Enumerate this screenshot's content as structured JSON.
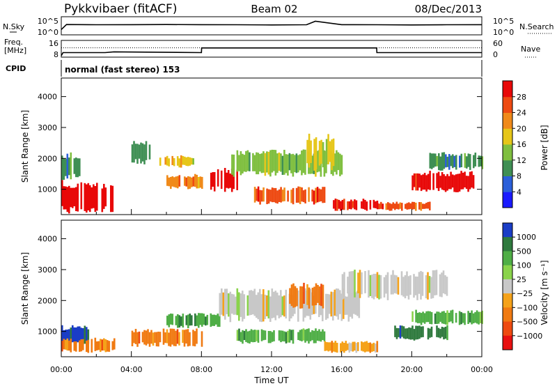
{
  "header": {
    "station": "Pykkvibaer (fitACF)",
    "beam": "Beam 02",
    "date": "08/Dec/2013"
  },
  "chart_data": [
    {
      "type": "line",
      "panel": "noise",
      "left_label": "N.Sky",
      "left_ticks": [
        "10^5",
        "10^0"
      ],
      "right_label": "N.Search",
      "right_ticks": [
        "10^5",
        "10^0"
      ],
      "series": [
        {
          "name": "N.Sky",
          "style": "solid",
          "x": [
            0,
            0.3,
            2,
            4,
            6,
            8,
            10,
            12,
            14,
            14.5,
            16,
            18,
            20,
            22,
            24
          ],
          "y": [
            10,
            1000,
            800,
            900,
            1000,
            900,
            800,
            700,
            800,
            20000,
            900,
            800,
            700,
            800,
            900
          ]
        }
      ]
    },
    {
      "type": "line",
      "panel": "frequency",
      "left_label": "Freq.",
      "left_unit": "[MHz]",
      "left_ticks": [
        "16",
        "8"
      ],
      "right_label": "Nave",
      "right_ticks": [
        "60",
        "0"
      ],
      "series": [
        {
          "name": "Freq",
          "style": "solid",
          "x": [
            0,
            0.1,
            2.5,
            3,
            8,
            8.01,
            18,
            18.01,
            24
          ],
          "y": [
            8,
            10,
            10,
            10.5,
            10,
            13,
            13,
            10,
            10
          ]
        },
        {
          "name": "Nave",
          "style": "dotted",
          "x": [
            0,
            24
          ],
          "y": [
            38,
            38
          ]
        }
      ]
    },
    {
      "type": "text",
      "panel": "cpid",
      "label": "CPID",
      "value": "normal (fast stereo) 153"
    },
    {
      "type": "heatmap",
      "panel": "power",
      "xlabel": "",
      "ylabel": "Slant Range [km]",
      "xlim": [
        0,
        24
      ],
      "ylim": [
        180,
        4600
      ],
      "yticks": [
        1000,
        2000,
        3000,
        4000
      ],
      "colorbar": {
        "label": "Power [dB]",
        "ticks": [
          4,
          8,
          12,
          16,
          20,
          24,
          28
        ],
        "range": [
          0,
          32
        ],
        "colors": [
          "#1a1aff",
          "#2b5fd9",
          "#3f8f54",
          "#7fbf3f",
          "#e6c619",
          "#f08a1a",
          "#ee4a12",
          "#e80808"
        ]
      },
      "bands": [
        {
          "x": [
            0,
            3
          ],
          "y": [
            200,
            1300
          ],
          "level": 28
        },
        {
          "x": [
            0,
            1
          ],
          "y": [
            1300,
            2200
          ],
          "level": 10
        },
        {
          "x": [
            4,
            5
          ],
          "y": [
            1800,
            2600
          ],
          "level": 8
        },
        {
          "x": [
            5.5,
            7.5
          ],
          "y": [
            1700,
            2100
          ],
          "level": 16
        },
        {
          "x": [
            6,
            8
          ],
          "y": [
            1000,
            1500
          ],
          "level": 20
        },
        {
          "x": [
            8.5,
            10
          ],
          "y": [
            900,
            1700
          ],
          "level": 28
        },
        {
          "x": [
            9.5,
            16
          ],
          "y": [
            1400,
            2300
          ],
          "level": 12
        },
        {
          "x": [
            11,
            15
          ],
          "y": [
            500,
            1100
          ],
          "level": 24
        },
        {
          "x": [
            14,
            15.5
          ],
          "y": [
            1600,
            2800
          ],
          "level": 16
        },
        {
          "x": [
            15.5,
            18
          ],
          "y": [
            300,
            700
          ],
          "level": 28
        },
        {
          "x": [
            18,
            21
          ],
          "y": [
            300,
            600
          ],
          "level": 24
        },
        {
          "x": [
            20,
            23.5
          ],
          "y": [
            900,
            1600
          ],
          "level": 28
        },
        {
          "x": [
            21,
            24
          ],
          "y": [
            1600,
            2200
          ],
          "level": 8
        }
      ]
    },
    {
      "type": "heatmap",
      "panel": "velocity",
      "xlabel": "Time UT",
      "ylabel": "Slant Range [km]",
      "xlim": [
        0,
        24
      ],
      "ylim": [
        180,
        4600
      ],
      "yticks": [
        1000,
        2000,
        3000,
        4000
      ],
      "xticks": [
        "00:00",
        "04:00",
        "08:00",
        "12:00",
        "16:00",
        "20:00",
        "00:00"
      ],
      "colorbar": {
        "label": "Velocity [m s⁻¹]",
        "ticks": [
          "1000",
          "500",
          "100",
          "25",
          "−25",
          "−100",
          "−500",
          "−1000"
        ],
        "colors": [
          "#1a3dc6",
          "#2f7a3e",
          "#4fae46",
          "#8ad34b",
          "#c8c8c8",
          "#f5a21a",
          "#f07a12",
          "#ee4a10",
          "#e81010"
        ]
      },
      "bands": [
        {
          "x": [
            0,
            1.5
          ],
          "y": [
            500,
            1200
          ],
          "level": "1000"
        },
        {
          "x": [
            0,
            3
          ],
          "y": [
            300,
            800
          ],
          "level": "-500"
        },
        {
          "x": [
            4,
            8
          ],
          "y": [
            500,
            1100
          ],
          "level": "-500"
        },
        {
          "x": [
            6,
            9
          ],
          "y": [
            1100,
            1600
          ],
          "level": "100"
        },
        {
          "x": [
            9,
            17
          ],
          "y": [
            1300,
            2400
          ],
          "level": "25"
        },
        {
          "x": [
            10,
            15
          ],
          "y": [
            600,
            1100
          ],
          "level": "100"
        },
        {
          "x": [
            13,
            15
          ],
          "y": [
            1700,
            2600
          ],
          "level": "-500"
        },
        {
          "x": [
            15,
            18
          ],
          "y": [
            300,
            700
          ],
          "level": "-100"
        },
        {
          "x": [
            19,
            22
          ],
          "y": [
            700,
            1200
          ],
          "level": "500"
        },
        {
          "x": [
            20,
            24
          ],
          "y": [
            1200,
            1700
          ],
          "level": "100"
        },
        {
          "x": [
            16,
            22
          ],
          "y": [
            2000,
            3000
          ],
          "level": "25"
        }
      ]
    }
  ]
}
